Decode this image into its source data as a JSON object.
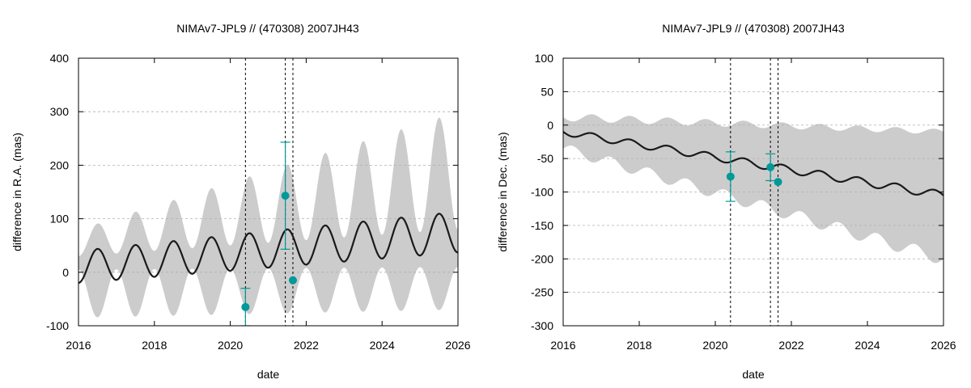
{
  "colors": {
    "band": "#cccccc",
    "line": "#1a1a1a",
    "obs": "#009999",
    "grid": "#b0b0b0",
    "frame": "#000000"
  },
  "chart_data": [
    {
      "type": "line",
      "title": "NIMAv7-JPL9 // (470308) 2007JH43",
      "xlabel": "date",
      "ylabel": "difference in R.A. (mas)",
      "xlim": [
        2016,
        2026
      ],
      "ylim": [
        -100,
        400
      ],
      "xticks": [
        2016,
        2018,
        2020,
        2022,
        2024,
        2026
      ],
      "yticks": [
        -100,
        0,
        100,
        200,
        300,
        400
      ],
      "grid": true,
      "vlines": [
        2020.4,
        2021.45,
        2021.65
      ],
      "model": {
        "mean_start": 10,
        "mean_end": 75,
        "amp_start": 30,
        "amp_end": 38,
        "period": 1.0,
        "phase_year": 2016.25
      },
      "band": {
        "upper_base_start": 55,
        "upper_base_end": 190,
        "upper_amp_start": 25,
        "upper_amp_end": 110,
        "lower_base_start": -40,
        "lower_base_end": -30,
        "lower_amp_start": 45,
        "lower_amp_end": 40
      },
      "observations": [
        {
          "x": 2020.4,
          "y": -65,
          "yerr_low": 35,
          "yerr_high": 35
        },
        {
          "x": 2021.45,
          "y": 143,
          "yerr_low": 100,
          "yerr_high": 100
        },
        {
          "x": 2021.65,
          "y": -15,
          "yerr_low": 0,
          "yerr_high": 0
        }
      ]
    },
    {
      "type": "line",
      "title": "NIMAv7-JPL9 // (470308) 2007JH43",
      "xlabel": "date",
      "ylabel": "difference in Dec. (mas)",
      "xlim": [
        2016,
        2026
      ],
      "ylim": [
        -300,
        100
      ],
      "xticks": [
        2016,
        2018,
        2020,
        2022,
        2024,
        2026
      ],
      "yticks": [
        -300,
        -250,
        -200,
        -150,
        -100,
        -50,
        0,
        50,
        100
      ],
      "grid": true,
      "vlines": [
        2020.4,
        2021.45,
        2021.65
      ],
      "model": {
        "mean_start": -10,
        "mean_end": -105,
        "amp_start": 5,
        "amp_end": 6,
        "period": 1.0,
        "phase_year": 2016.5
      },
      "band": {
        "upper_base_start": 12,
        "upper_base_end": -10,
        "upper_amp_start": 6,
        "upper_amp_end": 4,
        "lower_base_start": -35,
        "lower_base_end": -200,
        "lower_amp_start": 8,
        "lower_amp_end": 10
      },
      "observations": [
        {
          "x": 2020.4,
          "y": -77,
          "yerr_low": 37,
          "yerr_high": 37
        },
        {
          "x": 2021.45,
          "y": -63,
          "yerr_low": 20,
          "yerr_high": 20
        },
        {
          "x": 2021.65,
          "y": -85,
          "yerr_low": 0,
          "yerr_high": 0
        }
      ]
    }
  ]
}
